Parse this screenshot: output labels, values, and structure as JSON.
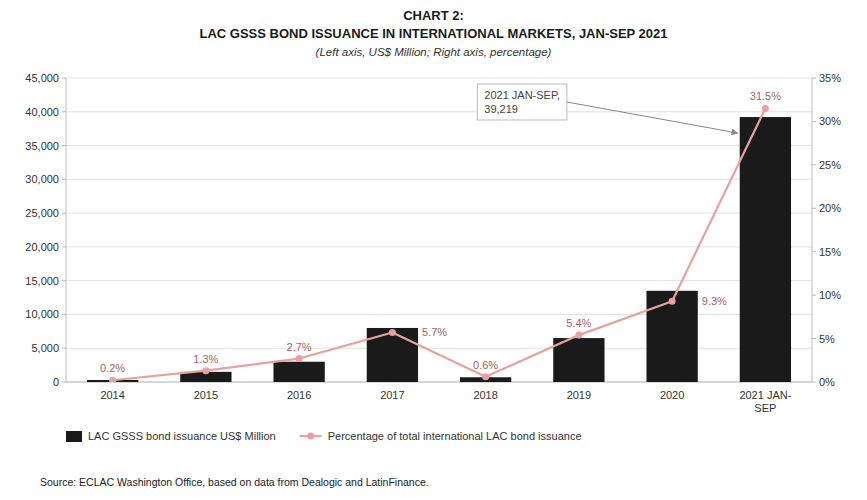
{
  "chart_data": {
    "type": "bar",
    "title": [
      "CHART 2:",
      "LAC GSSS BOND ISSUANCE IN INTERNATIONAL MARKETS, JAN-SEP 2021"
    ],
    "subtitle": "(Left axis, US$ Million; Right axis, percentage)",
    "categories": [
      "2014",
      "2015",
      "2016",
      "2017",
      "2018",
      "2019",
      "2020",
      "2021 JAN-\nSEP"
    ],
    "series": [
      {
        "name": "LAC GSSS bond issuance US$ Million",
        "type": "bar",
        "color": "#1a1a1a",
        "values": [
          300,
          1500,
          3000,
          8000,
          700,
          6500,
          13500,
          39219
        ]
      },
      {
        "name": "Percentage of total international LAC bond issuance",
        "type": "line",
        "axis": "y2",
        "color": "#e8a0a0",
        "marker": "circle",
        "data_labels": true,
        "values": [
          0.2,
          1.3,
          2.7,
          5.7,
          0.6,
          5.4,
          9.3,
          31.5
        ],
        "value_labels": [
          "0.2%",
          "1.3%",
          "2.7%",
          "5.7%",
          "0.6%",
          "5.4%",
          "9.3%",
          "31.5%"
        ]
      }
    ],
    "ylim": [
      0,
      45000
    ],
    "yticks": [
      0,
      {
        "value": 5000,
        "label": "5,000"
      },
      {
        "value": 10000,
        "label": "10,000"
      },
      {
        "value": 15000,
        "label": "15,000"
      },
      {
        "value": 20000,
        "label": "20,000"
      },
      {
        "value": 25000,
        "label": "25,000"
      },
      {
        "value": 30000,
        "label": "30,000"
      },
      {
        "value": 35000,
        "label": "35,000"
      },
      {
        "value": 40000,
        "label": "40,000"
      },
      {
        "value": 45000,
        "label": "45,000"
      }
    ],
    "y2lim": [
      0,
      35
    ],
    "y2ticks": [
      {
        "value": 0,
        "label": "0%"
      },
      {
        "value": 5,
        "label": "5%"
      },
      {
        "value": 10,
        "label": "10%"
      },
      {
        "value": 15,
        "label": "15%"
      },
      {
        "value": 20,
        "label": "20%"
      },
      {
        "value": 25,
        "label": "25%"
      },
      {
        "value": 30,
        "label": "30%"
      },
      {
        "value": 35,
        "label": "35%"
      }
    ],
    "grid": true,
    "legend": "bottom",
    "annotations": [
      "2021 JAN-SEP,\n39,219"
    ],
    "source": "Source: ECLAC Washington Office, based on data from Dealogic and LatinFinance."
  }
}
